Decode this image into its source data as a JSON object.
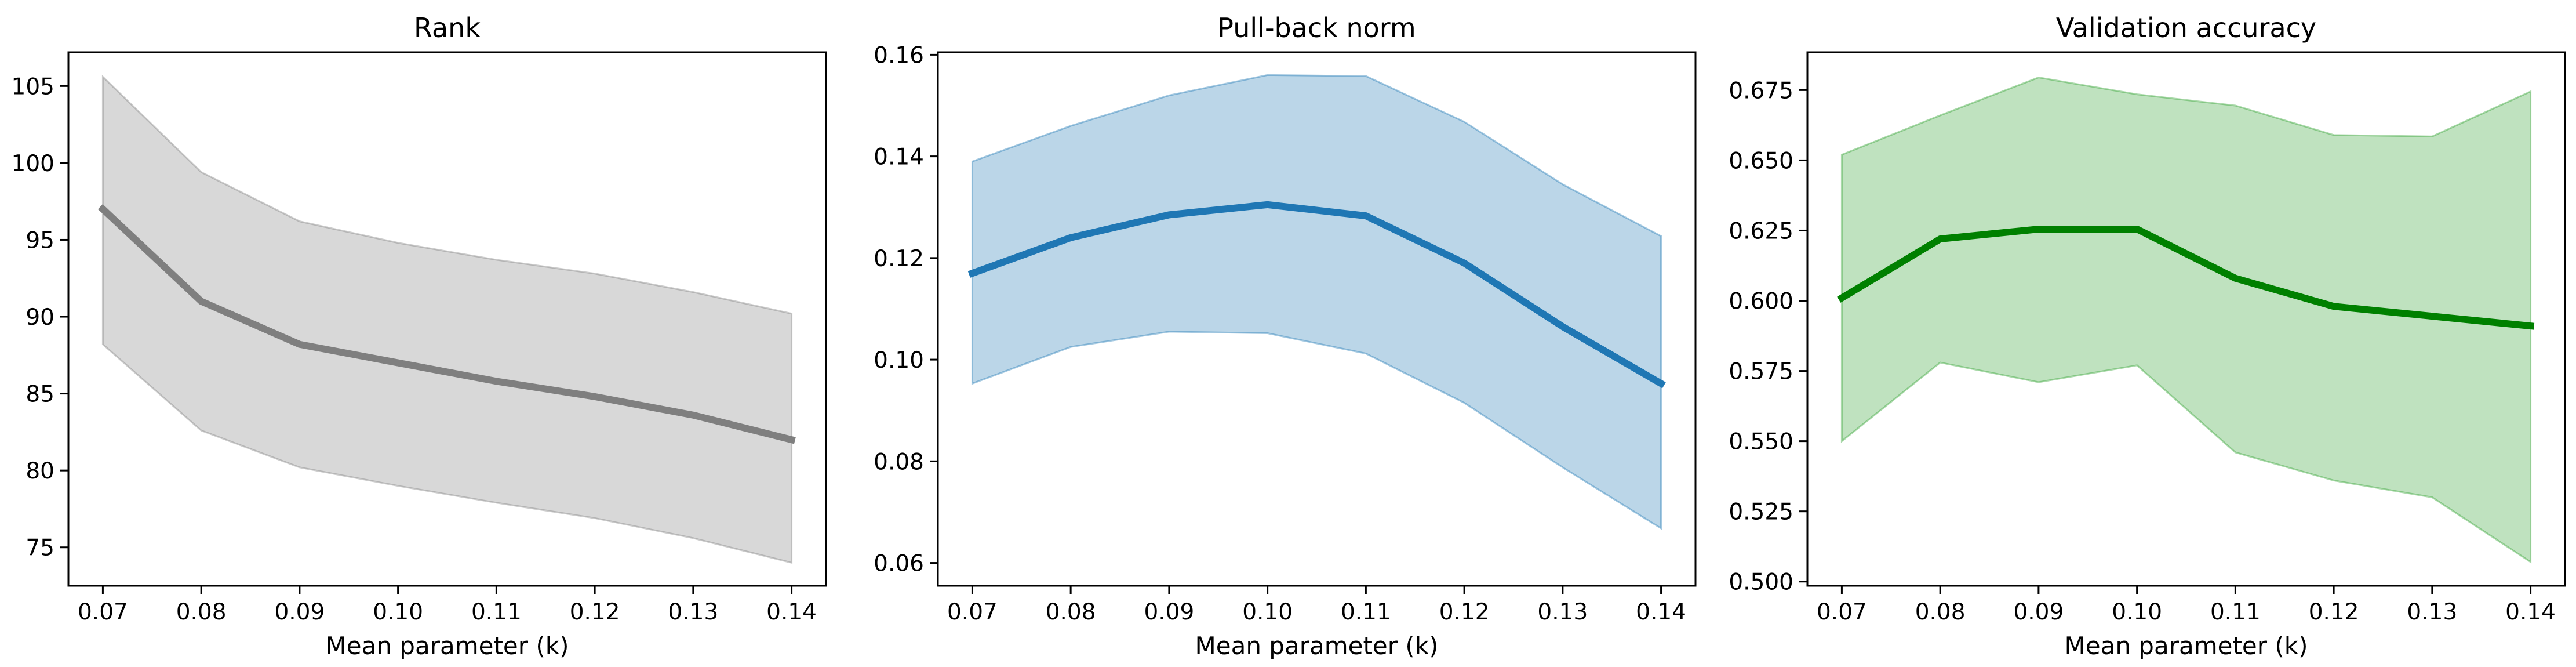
{
  "chart_data": [
    {
      "type": "line",
      "title": "Rank",
      "xlabel": "Mean parameter (k)",
      "ylabel": "",
      "xlim": [
        0.0665,
        0.1435
      ],
      "ylim": [
        72.5,
        107.2
      ],
      "x": [
        0.07,
        0.08,
        0.09,
        0.1,
        0.11,
        0.12,
        0.13,
        0.14
      ],
      "x_ticks": [
        "0.07",
        "0.08",
        "0.09",
        "0.10",
        "0.11",
        "0.12",
        "0.13",
        "0.14"
      ],
      "y_ticks": [
        75,
        80,
        85,
        90,
        95,
        100,
        105
      ],
      "series": [
        {
          "values": [
            97.0,
            91.0,
            88.2,
            87.0,
            85.8,
            84.8,
            83.6,
            82.0
          ],
          "lower": [
            88.2,
            82.6,
            80.2,
            79.0,
            77.9,
            76.9,
            75.6,
            74.0
          ],
          "upper": [
            105.6,
            99.4,
            96.2,
            94.8,
            93.7,
            92.8,
            91.6,
            90.2
          ],
          "line_color": "#7f7f7f",
          "band_color": "#7f7f7f"
        }
      ]
    },
    {
      "type": "line",
      "title": "Pull-back norm",
      "xlabel": "Mean parameter (k)",
      "ylabel": "",
      "xlim": [
        0.0665,
        0.1435
      ],
      "ylim": [
        0.0555,
        0.1605
      ],
      "x": [
        0.07,
        0.08,
        0.09,
        0.1,
        0.11,
        0.12,
        0.13,
        0.14
      ],
      "x_ticks": [
        "0.07",
        "0.08",
        "0.09",
        "0.10",
        "0.11",
        "0.12",
        "0.13",
        "0.14"
      ],
      "y_ticks": [
        0.06,
        0.08,
        0.1,
        0.12,
        0.14,
        0.16
      ],
      "y_tick_labels": [
        "0.06",
        "0.08",
        "0.10",
        "0.12",
        "0.14",
        "0.16"
      ],
      "series": [
        {
          "values": [
            0.117,
            0.124,
            0.1285,
            0.1305,
            0.1283,
            0.119,
            0.1065,
            0.0953
          ],
          "lower": [
            0.0953,
            0.1025,
            0.1055,
            0.1052,
            0.1012,
            0.0915,
            0.0788,
            0.0668
          ],
          "upper": [
            0.139,
            0.146,
            0.152,
            0.156,
            0.1558,
            0.1468,
            0.1345,
            0.1243
          ],
          "line_color": "#1f77b4",
          "band_color": "#1f77b4"
        }
      ]
    },
    {
      "type": "line",
      "title": "Validation accuracy",
      "xlabel": "Mean parameter (k)",
      "ylabel": "",
      "xlim": [
        0.0665,
        0.1435
      ],
      "ylim": [
        0.4985,
        0.6885
      ],
      "x": [
        0.07,
        0.08,
        0.09,
        0.1,
        0.11,
        0.12,
        0.13,
        0.14
      ],
      "x_ticks": [
        "0.07",
        "0.08",
        "0.09",
        "0.10",
        "0.11",
        "0.12",
        "0.13",
        "0.14"
      ],
      "y_ticks": [
        0.5,
        0.525,
        0.55,
        0.575,
        0.6,
        0.625,
        0.65,
        0.675
      ],
      "y_tick_labels": [
        "0.500",
        "0.525",
        "0.550",
        "0.575",
        "0.600",
        "0.625",
        "0.650",
        "0.675"
      ],
      "series": [
        {
          "values": [
            0.601,
            0.622,
            0.6255,
            0.6255,
            0.608,
            0.598,
            0.5945,
            0.591
          ],
          "lower": [
            0.55,
            0.578,
            0.571,
            0.577,
            0.546,
            0.536,
            0.53,
            0.507
          ],
          "upper": [
            0.652,
            0.666,
            0.6795,
            0.6735,
            0.6695,
            0.659,
            0.6585,
            0.6745
          ],
          "line_color": "#008000",
          "band_color": "#2ca02c"
        }
      ]
    }
  ]
}
